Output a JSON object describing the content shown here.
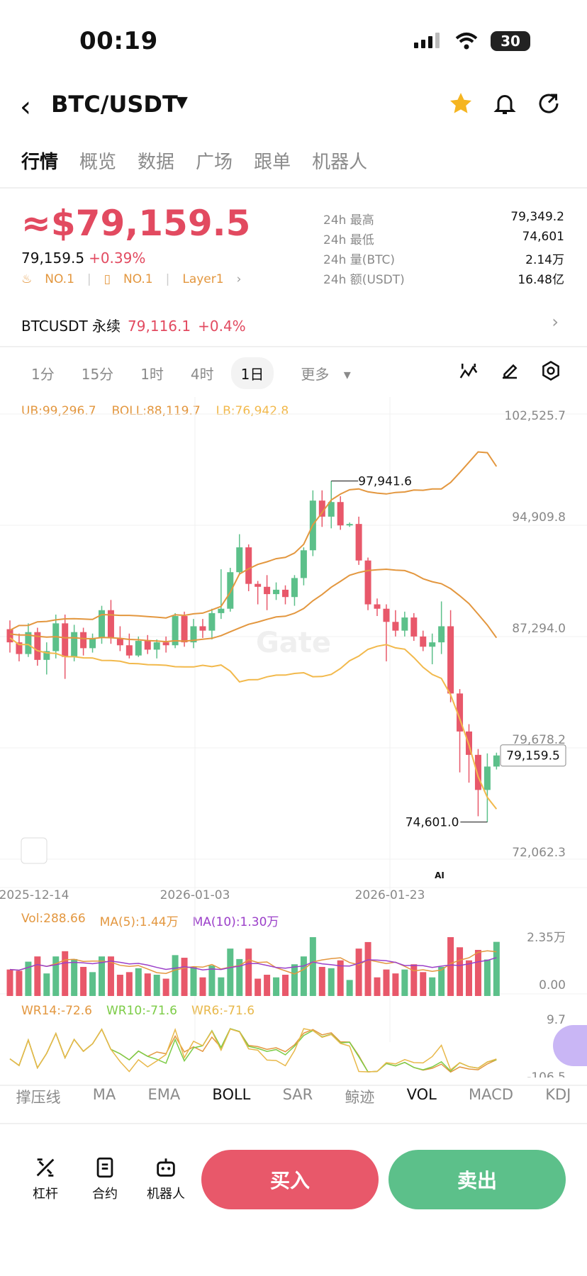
{
  "status": {
    "time": "00:19",
    "battery": "30"
  },
  "header": {
    "title": "BTC/USDT"
  },
  "tabs": [
    "行情",
    "概览",
    "数据",
    "广场",
    "跟单",
    "机器人"
  ],
  "price": {
    "main": "≈$79,159.5",
    "last": "79,159.5",
    "change": "+0.39%",
    "badges": [
      "NO.1",
      "NO.1",
      "Layer1"
    ]
  },
  "stats": [
    {
      "label": "24h  最高",
      "value": "79,349.2"
    },
    {
      "label": "24h  最低",
      "value": "74,601"
    },
    {
      "label": "24h  量(BTC)",
      "value": "2.14万"
    },
    {
      "label": "24h  额(USDT)",
      "value": "16.48亿"
    }
  ],
  "perp": {
    "name": "BTCUSDT 永续",
    "price": "79,116.1",
    "change": "+0.4%"
  },
  "intervals": [
    "1分",
    "15分",
    "1时",
    "4时",
    "1日",
    "更多"
  ],
  "selected_interval": "1日",
  "legend": {
    "ub": "UB:99,296.7",
    "boll": "BOLL:88,119.7",
    "lb": "LB:76,942.8",
    "vol": "Vol:288.66",
    "ma5": "MA(5):1.44万",
    "ma10": "MA(10):1.30万",
    "wr14": "WR14:-72.6",
    "wr10": "WR10:-71.6",
    "wr6": "WR6:-71.6"
  },
  "indicators": [
    "撑压线",
    "MA",
    "EMA",
    "BOLL",
    "SAR",
    "鲸迹",
    "VOL",
    "MACD",
    "KDJ"
  ],
  "bottom": {
    "leverage": "杠杆",
    "contract": "合约",
    "bot": "机器人",
    "buy": "买入",
    "sell": "卖出"
  },
  "colors": {
    "up": "#5cc08a",
    "down": "#e8586a",
    "boll_mid": "#e3973f",
    "boll_band": "#e3973f",
    "lb": "#f2b94c"
  },
  "chart_data": {
    "type": "candlestick",
    "price_axis_ticks": [
      "102,525.7",
      "94,909.8",
      "87,294.0",
      "79,678.2",
      "72,062.3"
    ],
    "ylim": [
      72062.3,
      102525.7
    ],
    "date_ticks": [
      "2025-12-14",
      "2026-01-03",
      "2026-01-23"
    ],
    "high_label": "97,941.6",
    "low_label": "74,601.0",
    "current_label": "79,159.5",
    "watermark": "Gate",
    "ai_tag": "AI",
    "volume_axis": [
      "2.35万",
      "0.00"
    ],
    "wr_axis": [
      "9.7",
      "-106.5"
    ],
    "candles": [
      [
        87800,
        88400,
        86200,
        86900
      ],
      [
        86900,
        87500,
        85600,
        86100
      ],
      [
        86100,
        88200,
        85900,
        87600
      ],
      [
        87600,
        87900,
        85300,
        85700
      ],
      [
        85700,
        86900,
        84700,
        86300
      ],
      [
        86300,
        88800,
        85800,
        88200
      ],
      [
        88200,
        88800,
        84400,
        85900
      ],
      [
        85900,
        88100,
        85600,
        87600
      ],
      [
        87600,
        87900,
        86000,
        86500
      ],
      [
        86500,
        87500,
        86200,
        87200
      ],
      [
        87200,
        89400,
        86800,
        89100
      ],
      [
        89100,
        89800,
        86800,
        87200
      ],
      [
        87200,
        88000,
        86300,
        86700
      ],
      [
        86700,
        87500,
        85800,
        86000
      ],
      [
        86000,
        87300,
        85900,
        87000
      ],
      [
        87000,
        87400,
        86100,
        86400
      ],
      [
        86400,
        87100,
        85800,
        86900
      ],
      [
        86900,
        87300,
        86200,
        86700
      ],
      [
        86700,
        88900,
        86500,
        88700
      ],
      [
        88700,
        89000,
        86600,
        86900
      ],
      [
        86900,
        88500,
        86500,
        88000
      ],
      [
        88000,
        88500,
        87200,
        87700
      ],
      [
        87700,
        89200,
        87100,
        88900
      ],
      [
        88900,
        91900,
        88500,
        89200
      ],
      [
        89200,
        92000,
        89000,
        91700
      ],
      [
        91700,
        94300,
        91500,
        93400
      ],
      [
        93400,
        93600,
        90400,
        90900
      ],
      [
        90900,
        91100,
        89500,
        90700
      ],
      [
        90700,
        91500,
        89100,
        90200
      ],
      [
        90200,
        91000,
        89800,
        90500
      ],
      [
        90500,
        90800,
        89500,
        90000
      ],
      [
        90000,
        91500,
        89400,
        91300
      ],
      [
        91300,
        93400,
        90800,
        93200
      ],
      [
        93200,
        97300,
        92800,
        96600
      ],
      [
        96600,
        97300,
        94800,
        95500
      ],
      [
        95500,
        97942,
        94700,
        96500
      ],
      [
        96500,
        96900,
        94600,
        94900
      ],
      [
        94900,
        95100,
        94800,
        95000
      ],
      [
        95000,
        95500,
        92200,
        92500
      ],
      [
        92500,
        92700,
        89100,
        89500
      ],
      [
        89500,
        89900,
        88700,
        89200
      ],
      [
        89200,
        89500,
        85600,
        88300
      ],
      [
        88300,
        89100,
        87300,
        87700
      ],
      [
        87700,
        89000,
        87300,
        88600
      ],
      [
        88600,
        88900,
        87000,
        87300
      ],
      [
        87300,
        87700,
        86300,
        86600
      ],
      [
        86600,
        87500,
        85400,
        86900
      ],
      [
        86900,
        89700,
        86100,
        88000
      ],
      [
        88000,
        89100,
        82800,
        83400
      ],
      [
        83400,
        83700,
        78000,
        80800
      ],
      [
        80800,
        81300,
        77300,
        79200
      ],
      [
        79200,
        79600,
        75000,
        76800
      ],
      [
        76800,
        79300,
        74601,
        78400
      ],
      [
        78400,
        79350,
        78200,
        79160
      ]
    ]
  }
}
